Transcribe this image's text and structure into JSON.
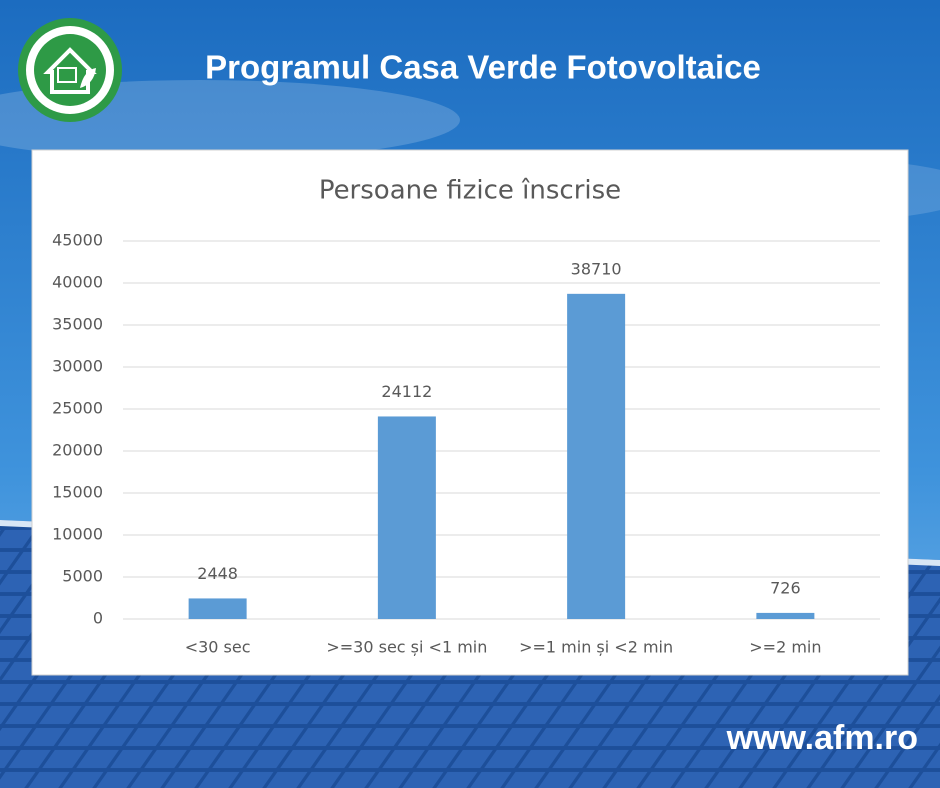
{
  "header": {
    "title": "Programul Casa Verde Fotovoltaice"
  },
  "footer": {
    "url": "www.afm.ro"
  },
  "chart_data": {
    "type": "bar",
    "title": "Persoane fizice înscrise",
    "categories": [
      "<30 sec",
      ">=30 sec și <1 min",
      ">=1 min și <2 min",
      ">=2 min"
    ],
    "values": [
      2448,
      24112,
      38710,
      726
    ],
    "color": "#5b9bd5",
    "ylim": [
      0,
      45000
    ],
    "yticks": [
      0,
      5000,
      10000,
      15000,
      20000,
      25000,
      30000,
      35000,
      40000,
      45000
    ],
    "grid": true
  }
}
